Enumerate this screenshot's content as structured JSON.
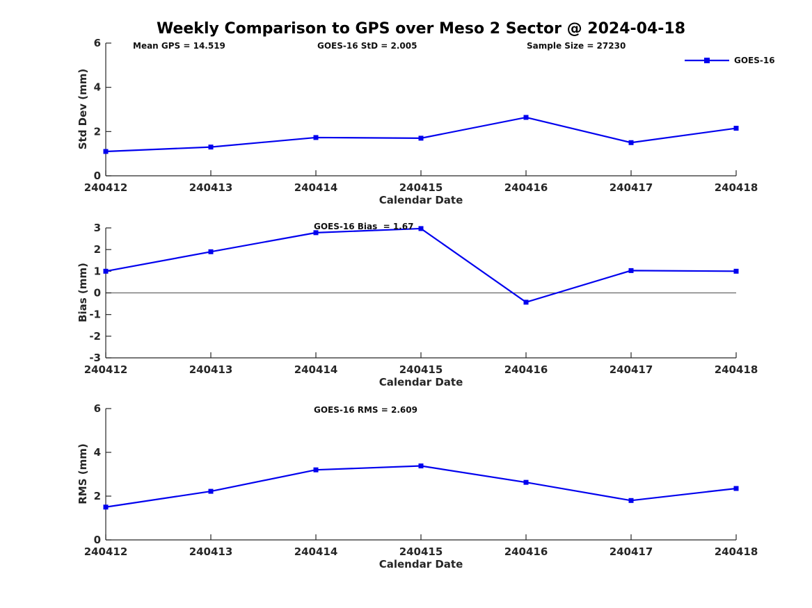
{
  "title": "Weekly Comparison to GPS over Meso 2 Sector @ 2024-04-18",
  "legend": {
    "label": "GOES-16"
  },
  "colors": {
    "series": "#0000EE",
    "zero_line": "#666666",
    "axis": "#262626",
    "text": "#111111"
  },
  "xlabel": "Calendar Date",
  "categories": [
    "240412",
    "240413",
    "240414",
    "240415",
    "240416",
    "240417",
    "240418"
  ],
  "chart_data": [
    {
      "type": "line",
      "name": "std-dev",
      "series_name": "GOES-16",
      "ylabel": "Std Dev (mm)",
      "ylim": [
        0,
        6
      ],
      "yticks": [
        "0",
        "2",
        "4",
        "6"
      ],
      "grid": false,
      "legend_position": "top-right-outside",
      "annotations": [
        {
          "text": "Mean GPS = 14.519"
        },
        {
          "text": "GOES-16 StD = 2.005"
        },
        {
          "text": "Sample Size = 27230"
        }
      ],
      "values": [
        1.1,
        1.3,
        1.73,
        1.7,
        2.64,
        1.5,
        2.15
      ]
    },
    {
      "type": "line",
      "name": "bias",
      "series_name": "GOES-16",
      "ylabel": "Bias (mm)",
      "ylim": [
        -3,
        3
      ],
      "yticks": [
        "-3",
        "-2",
        "-1",
        "0",
        "1",
        "2",
        "3"
      ],
      "grid": false,
      "zero_line": true,
      "annotations": [
        {
          "text": "GOES-16 Bias  = 1.67"
        }
      ],
      "values": [
        1.0,
        1.9,
        2.78,
        2.97,
        -0.43,
        1.03,
        1.0
      ]
    },
    {
      "type": "line",
      "name": "rms",
      "series_name": "GOES-16",
      "ylabel": "RMS (mm)",
      "ylim": [
        0,
        6
      ],
      "yticks": [
        "0",
        "2",
        "4",
        "6"
      ],
      "grid": false,
      "annotations": [
        {
          "text": "GOES-16 RMS = 2.609"
        }
      ],
      "values": [
        1.5,
        2.22,
        3.2,
        3.38,
        2.63,
        1.8,
        2.35
      ]
    }
  ]
}
